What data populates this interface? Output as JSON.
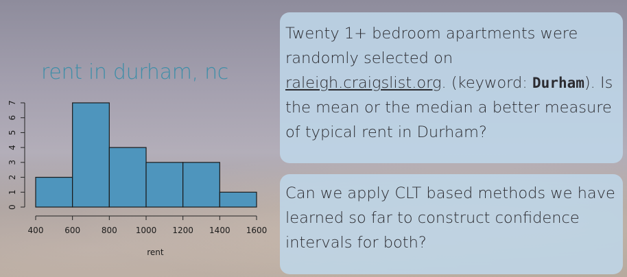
{
  "slide": {
    "box1": {
      "part1": "Twenty 1+ bedroom apartments were randomly selected on ",
      "link": "raleigh.craigslist.org",
      "part2": ". (keyword: ",
      "keyword": "Durham",
      "part3": "). Is the mean or the median a better measure of typical rent in Durham?"
    },
    "box2": {
      "text": "Can we apply CLT based methods we have learned so far to construct confidence intervals for both?"
    }
  },
  "chart_data": {
    "type": "bar",
    "title": "rent in durham, nc",
    "xlabel": "rent",
    "ylabel": "",
    "bins": [
      [
        400,
        600
      ],
      [
        600,
        800
      ],
      [
        800,
        1000
      ],
      [
        1000,
        1200
      ],
      [
        1200,
        1400
      ],
      [
        1400,
        1600
      ]
    ],
    "values": [
      2,
      7,
      4,
      3,
      3,
      1
    ],
    "xlim": [
      400,
      1600
    ],
    "ylim": [
      0,
      7
    ],
    "x_ticks": [
      "400",
      "600",
      "800",
      "1000",
      "1200",
      "1400",
      "1600"
    ],
    "y_ticks": [
      "0",
      "1",
      "2",
      "3",
      "4",
      "5",
      "6",
      "7"
    ],
    "bar_color": "#4e95bd",
    "grid": false
  }
}
